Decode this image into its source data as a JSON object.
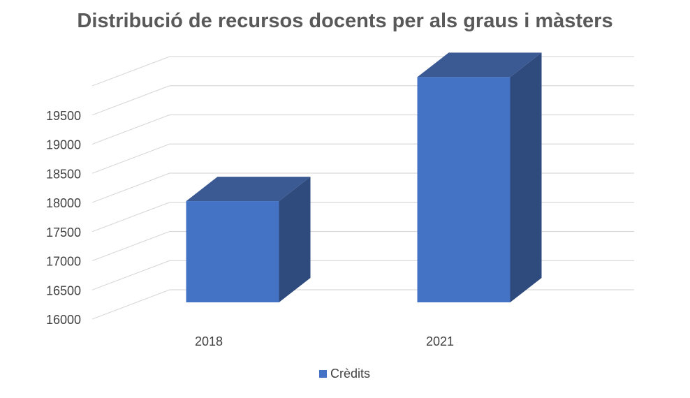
{
  "chart_data": {
    "type": "bar",
    "title": "Distribució de recursos docents per als graus i màsters",
    "categories": [
      "2018",
      "2021"
    ],
    "series": [
      {
        "name": "Crèdits",
        "values": [
          17550,
          19450
        ],
        "color": "#4472C4"
      }
    ],
    "ylim": [
      16000,
      20000
    ],
    "yticks": [
      16000,
      16500,
      17000,
      17500,
      18000,
      18500,
      19000,
      19500
    ],
    "grid": true,
    "legend": "bottom",
    "three_d": true
  }
}
